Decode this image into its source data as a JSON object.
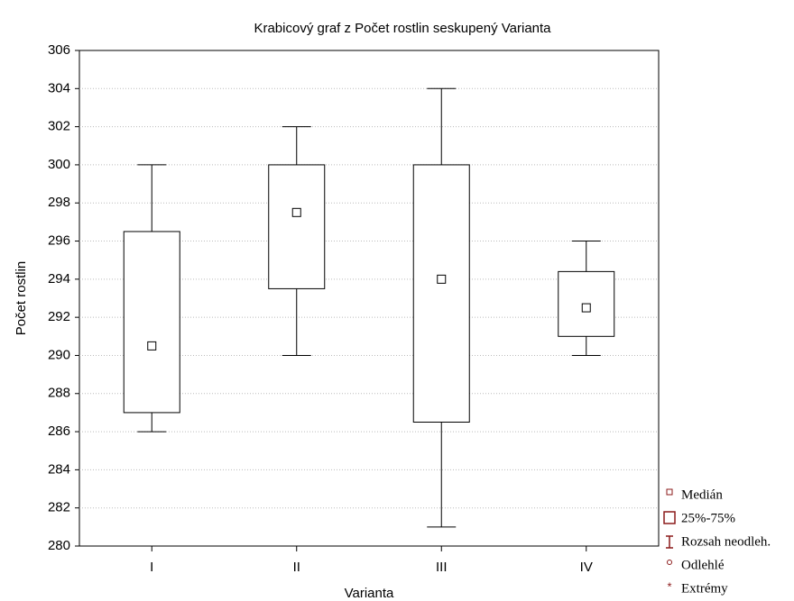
{
  "chart_data": {
    "type": "box",
    "title": "Krabicový graf z Počet rostlin seskupený Varianta",
    "x_label": "Varianta",
    "y_label": "Počet rostlin",
    "categories": [
      "I",
      "II",
      "III",
      "IV"
    ],
    "boxes": [
      {
        "min": 286,
        "q1": 287,
        "median": 290.5,
        "q3": 296.5,
        "max": 300
      },
      {
        "min": 290,
        "q1": 293.5,
        "median": 297.5,
        "q3": 300,
        "max": 302
      },
      {
        "min": 281,
        "q1": 286.5,
        "median": 294,
        "q3": 300,
        "max": 304
      },
      {
        "min": 290,
        "q1": 291,
        "median": 292.5,
        "q3": 294.4,
        "max": 296
      }
    ],
    "ylim": [
      280,
      306
    ],
    "yticks": [
      280,
      282,
      284,
      286,
      288,
      290,
      292,
      294,
      296,
      298,
      300,
      302,
      304,
      306
    ],
    "grid": true,
    "legend": [
      "Medián",
      "25%-75%",
      "Rozsah neodleh.",
      "Odlehlé",
      "Extrémy"
    ],
    "legend_color": "#8b1a1a"
  }
}
